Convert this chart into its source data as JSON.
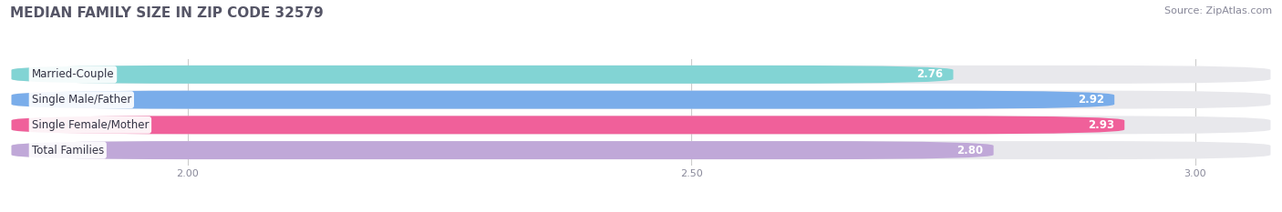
{
  "title": "MEDIAN FAMILY SIZE IN ZIP CODE 32579",
  "source": "Source: ZipAtlas.com",
  "categories": [
    "Married-Couple",
    "Single Male/Father",
    "Single Female/Mother",
    "Total Families"
  ],
  "values": [
    2.76,
    2.92,
    2.93,
    2.8
  ],
  "bar_colors": [
    "#82d4d4",
    "#7aadea",
    "#f0609a",
    "#c0a8d8"
  ],
  "bar_bg_color": "#e8e8ec",
  "background_color": "#ffffff",
  "xlim_min": 1.82,
  "xlim_max": 3.08,
  "xticks": [
    2.0,
    2.5,
    3.0
  ],
  "bar_height": 0.72,
  "bar_gap": 0.28,
  "label_fontsize": 8.5,
  "value_fontsize": 8.5,
  "title_fontsize": 11,
  "source_fontsize": 8,
  "title_color": "#555566",
  "source_color": "#888899",
  "label_color": "#333344",
  "value_color": "#ffffff",
  "tick_color": "#888899",
  "grid_color": "#cccccc",
  "rounding_size": 0.18
}
